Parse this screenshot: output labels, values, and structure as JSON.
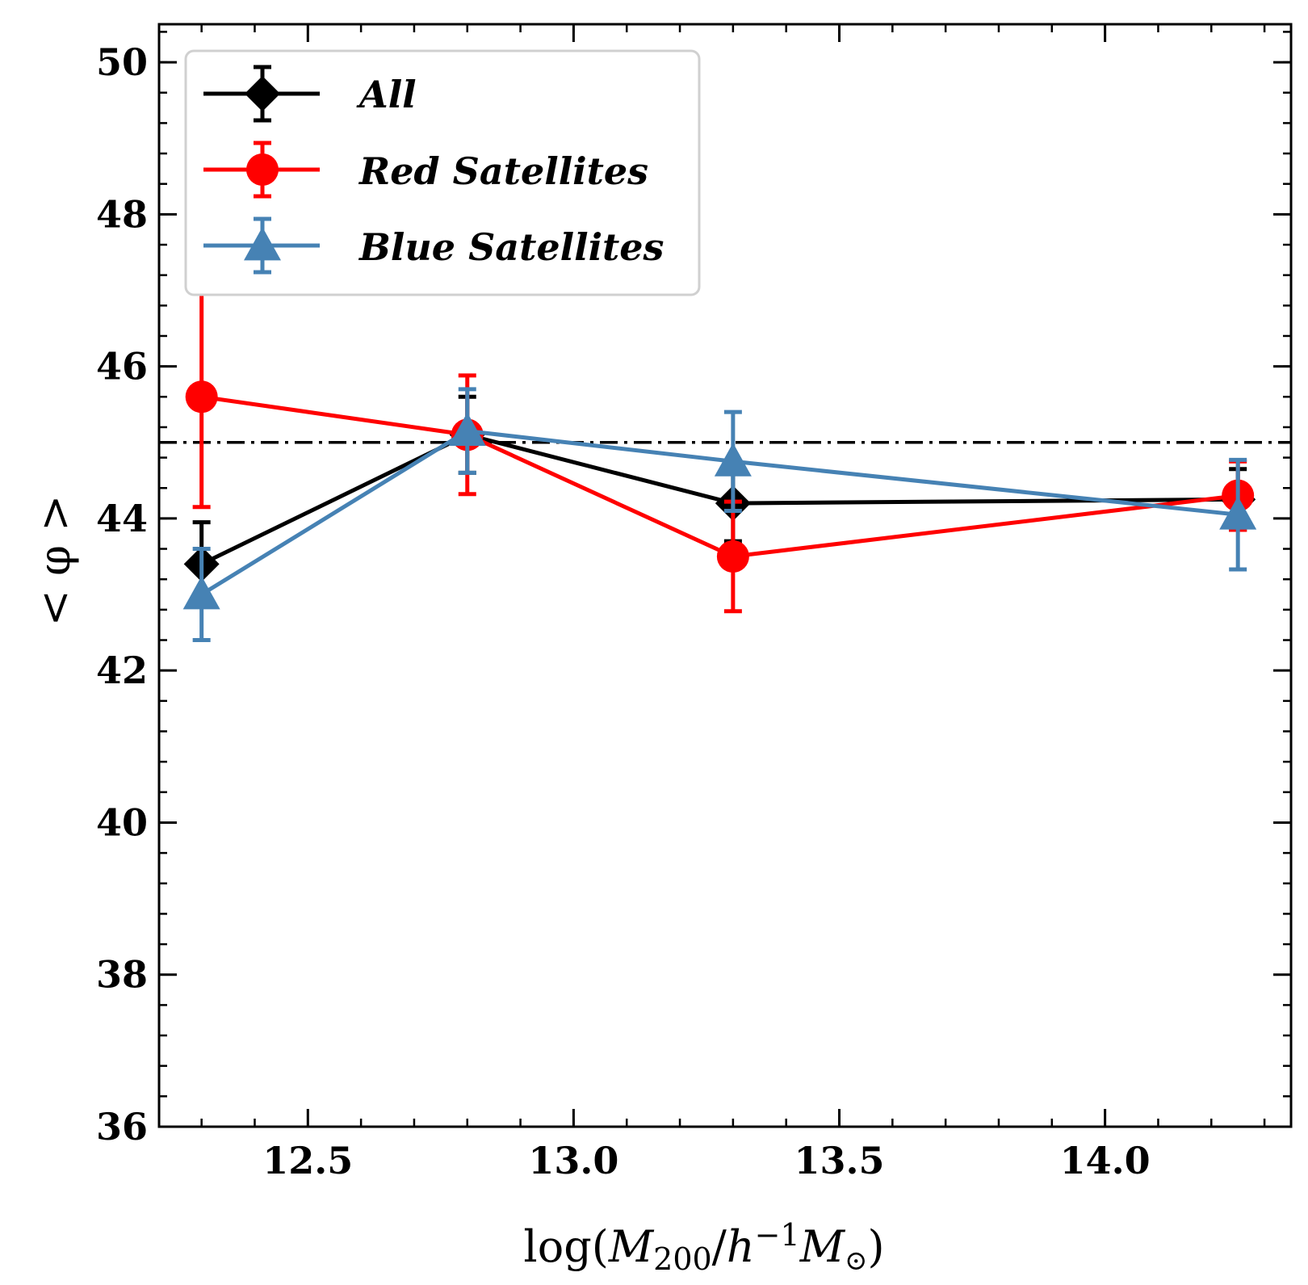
{
  "chart_data": {
    "type": "line",
    "xlabel": "log(M200/h^-1 M⊙)",
    "xlabel_parts": {
      "prefix": "log(",
      "m": "M",
      "sub": "200",
      "slash": "/",
      "h": "h",
      "sup": "−1",
      "m2": "M",
      "sun": "⊙",
      "suffix": ")"
    },
    "ylabel": "< φ >",
    "xlim": [
      12.22,
      14.35
    ],
    "ylim": [
      36,
      50.5
    ],
    "xticks": [
      12.5,
      13.0,
      13.5,
      14.0
    ],
    "xtick_labels": [
      "12.5",
      "13.0",
      "13.5",
      "14.0"
    ],
    "yticks": [
      36,
      38,
      40,
      42,
      44,
      46,
      48,
      50
    ],
    "ytick_labels": [
      "36",
      "38",
      "40",
      "42",
      "44",
      "46",
      "48",
      "50"
    ],
    "reference_line": {
      "y": 45.0,
      "style": "dash-dot",
      "color": "#000000"
    },
    "legend_position": "top-left",
    "series": [
      {
        "name": "All",
        "color": "#000000",
        "marker": "diamond",
        "x": [
          12.3,
          12.8,
          13.3,
          14.25
        ],
        "y": [
          43.4,
          45.1,
          44.2,
          44.25
        ],
        "yerr": [
          0.55,
          0.5,
          0.5,
          0.4
        ]
      },
      {
        "name": "Red Satellites",
        "color": "#ff0000",
        "marker": "circle",
        "x": [
          12.3,
          12.8,
          13.3,
          14.25
        ],
        "y": [
          45.6,
          45.1,
          43.5,
          44.3
        ],
        "yerr": [
          1.45,
          0.78,
          0.72,
          0.45
        ]
      },
      {
        "name": "Blue Satellites",
        "color": "#4682b4",
        "marker": "triangle",
        "x": [
          12.3,
          12.8,
          13.3,
          14.25
        ],
        "y": [
          43.0,
          45.15,
          44.75,
          44.05
        ],
        "yerr": [
          0.6,
          0.55,
          0.65,
          0.72
        ]
      }
    ]
  }
}
